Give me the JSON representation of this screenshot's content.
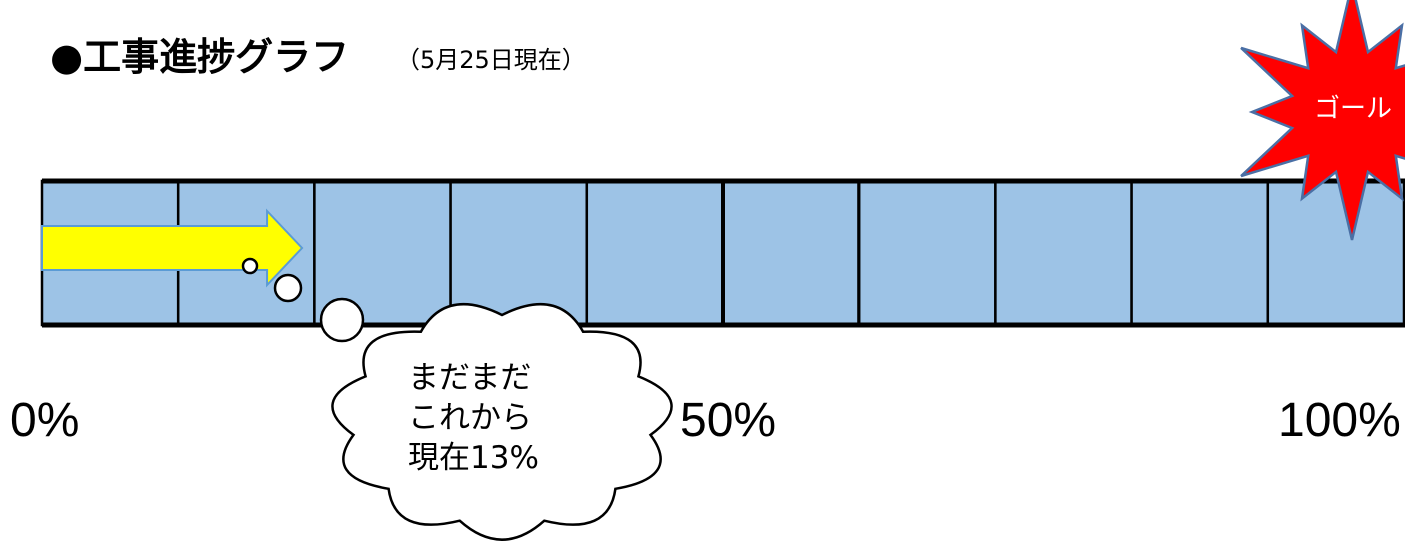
{
  "chart_data": {
    "type": "bar",
    "title": "●工事進捗グラフ",
    "subtitle": "（5月25日現在）",
    "xlim": [
      0,
      100
    ],
    "segments": 10,
    "progress": 13,
    "tick_labels": [
      {
        "value": 0,
        "label": "0%"
      },
      {
        "value": 50,
        "label": "50%"
      },
      {
        "value": 100,
        "label": "100%"
      }
    ],
    "annotations": {
      "cloud_lines": [
        "まだまだ",
        "これから",
        "現在13%"
      ],
      "goal": "ゴール"
    },
    "colors": {
      "bar_fill": "#9dc3e6",
      "arrow_fill": "#ffff00",
      "arrow_stroke": "#5b9bd5",
      "goal_fill": "#ff0000",
      "goal_stroke": "#4a6fa5"
    }
  }
}
